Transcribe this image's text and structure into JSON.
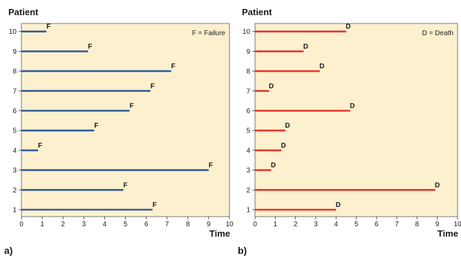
{
  "chart_data": [
    {
      "type": "bar",
      "panel_label": "a)",
      "ylabel": "Patient",
      "xlabel": "Time",
      "legend": "F = Failure",
      "end_label": "F",
      "xlim": [
        0,
        10
      ],
      "x_ticks": [
        "0",
        "1",
        "2",
        "3",
        "4",
        "5",
        "6",
        "7",
        "8",
        "9",
        "10"
      ],
      "categories": [
        "1",
        "2",
        "3",
        "4",
        "5",
        "6",
        "7",
        "8",
        "9",
        "10"
      ],
      "values": [
        6.3,
        4.9,
        9.0,
        0.8,
        3.5,
        5.2,
        6.2,
        7.2,
        3.2,
        1.2
      ],
      "bar_color": "#2e5b9a",
      "background": "#fdf0cf",
      "grid": false,
      "legend_position": "top-right"
    },
    {
      "type": "bar",
      "panel_label": "b)",
      "ylabel": "Patient",
      "xlabel": "Time",
      "legend": "D = Death",
      "end_label": "D",
      "xlim": [
        0,
        10
      ],
      "x_ticks": [
        "0",
        "1",
        "2",
        "3",
        "4",
        "5",
        "6",
        "7",
        "8",
        "9",
        "10"
      ],
      "categories": [
        "1",
        "2",
        "3",
        "4",
        "5",
        "6",
        "7",
        "8",
        "9",
        "10"
      ],
      "values": [
        4.0,
        8.9,
        0.8,
        1.3,
        1.5,
        4.7,
        0.7,
        3.2,
        2.4,
        4.5
      ],
      "bar_color": "#e8322b",
      "background": "#fdf0cf",
      "grid": false,
      "legend_position": "top-right"
    }
  ]
}
